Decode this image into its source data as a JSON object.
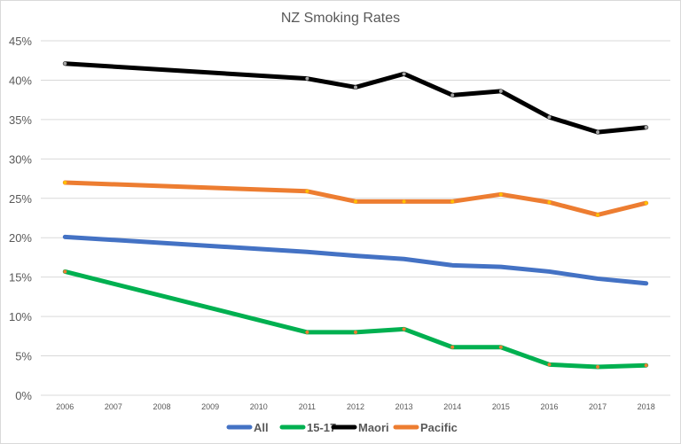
{
  "chart_data": {
    "type": "line",
    "title": "NZ Smoking Rates",
    "categories": [
      "2006",
      "2007",
      "2008",
      "2009",
      "2010",
      "2011",
      "2012",
      "2013",
      "2014",
      "2015",
      "2016",
      "2017",
      "2018"
    ],
    "y_ticks": [
      "0%",
      "5%",
      "10%",
      "15%",
      "20%",
      "25%",
      "30%",
      "35%",
      "40%",
      "45%"
    ],
    "ylim": [
      0,
      45
    ],
    "y_unit": "%",
    "grid": true,
    "legend_position": "bottom",
    "series": [
      {
        "name": "All",
        "color": "#4472c4",
        "marker_color": "#4472c4",
        "values": [
          20.1,
          null,
          null,
          null,
          null,
          18.2,
          17.7,
          17.3,
          16.5,
          16.3,
          15.7,
          14.8,
          14.2
        ]
      },
      {
        "name": "15-17",
        "color": "#00b050",
        "marker_color": "#ed7d31",
        "values": [
          15.7,
          null,
          null,
          null,
          null,
          8.0,
          8.0,
          8.4,
          6.1,
          6.1,
          3.9,
          3.6,
          3.8
        ]
      },
      {
        "name": "Maori",
        "color": "#000000",
        "marker_color": "#a6a6a6",
        "values": [
          42.1,
          null,
          null,
          null,
          null,
          40.2,
          39.1,
          40.8,
          38.1,
          38.6,
          35.3,
          33.4,
          34.0
        ]
      },
      {
        "name": "Pacific",
        "color": "#ed7d31",
        "marker_color": "#ffc000",
        "values": [
          27.0,
          null,
          null,
          null,
          null,
          25.9,
          24.6,
          24.6,
          24.6,
          25.5,
          24.5,
          22.9,
          24.4
        ]
      }
    ]
  }
}
